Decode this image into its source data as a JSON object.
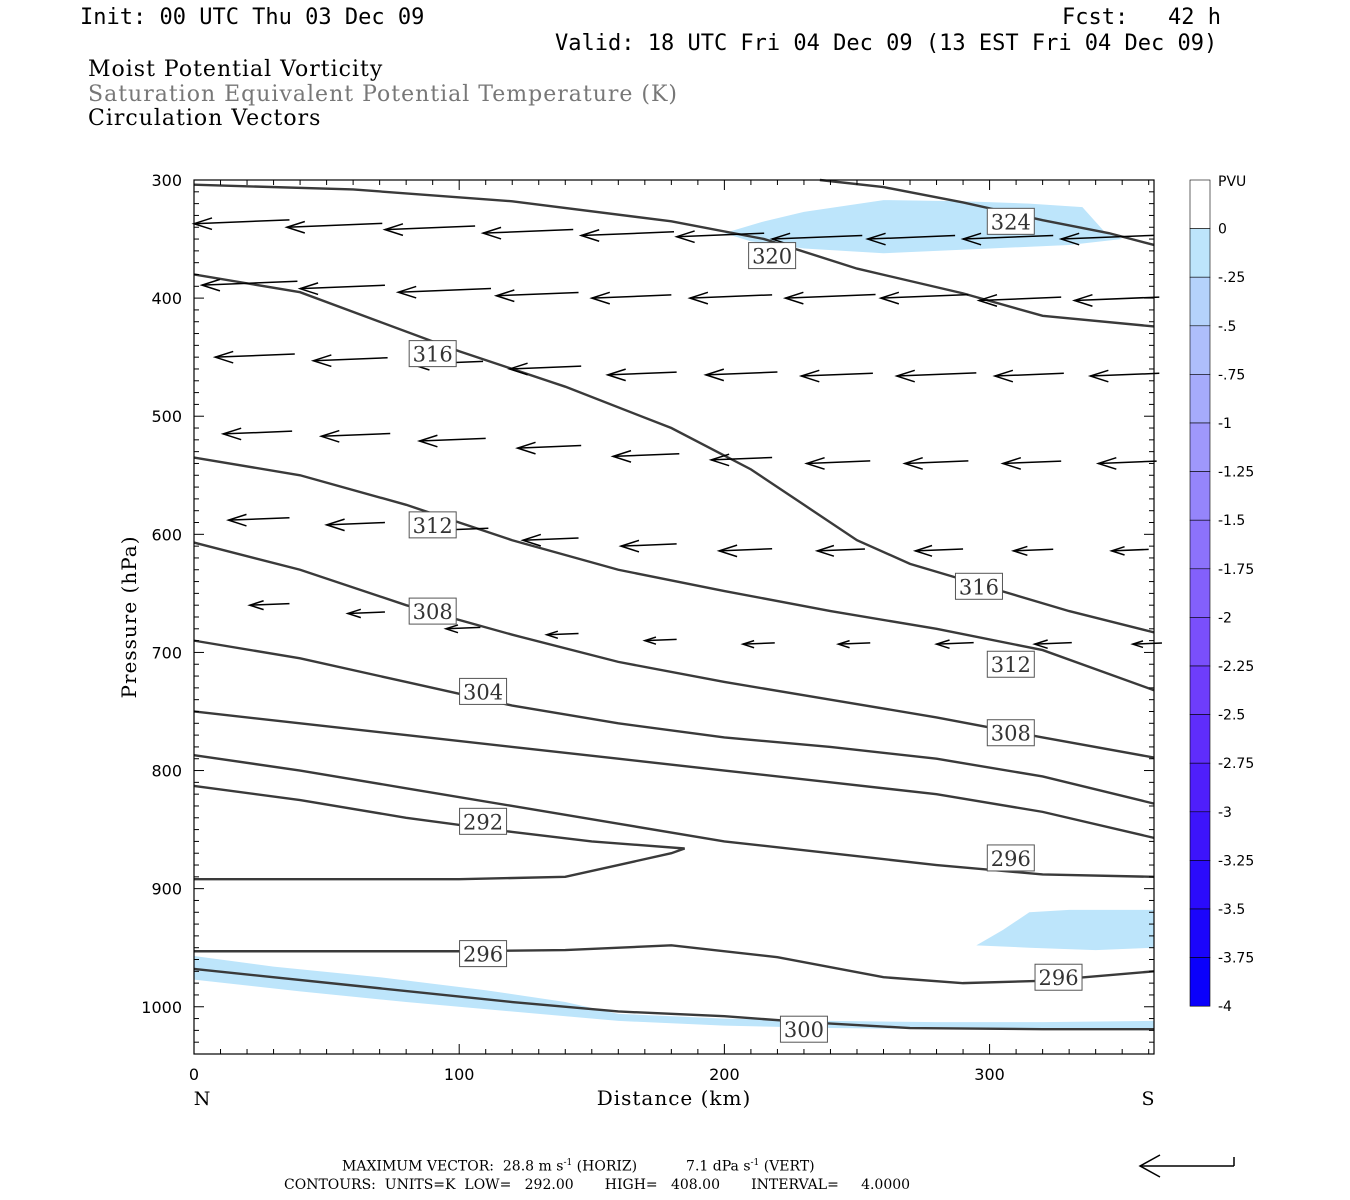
{
  "header": {
    "init": "Init: 00 UTC Thu 03 Dec 09",
    "fcst": "Fcst:   42 h",
    "valid": "Valid: 18 UTC Fri 04 Dec 09 (13 EST Fri 04 Dec 09)"
  },
  "titles": {
    "line1": "Moist Potential Vorticity",
    "line2": "Saturation Equivalent Potential Temperature (K)",
    "line3": "Circulation Vectors"
  },
  "chart_data": {
    "type": "cross-section",
    "xlabel": "Distance (km)",
    "ylabel": "Pressure (hPa)",
    "xlim": [
      0,
      362
    ],
    "ylim": [
      300,
      1040
    ],
    "xticks": [
      0,
      100,
      200,
      300
    ],
    "yticks": [
      300,
      400,
      500,
      600,
      700,
      800,
      900,
      1000
    ],
    "x_end_labels": {
      "left": "N",
      "right": "S"
    },
    "colorbar": {
      "title": "PVU",
      "labels": [
        "0",
        "-.25",
        "-.5",
        "-.75",
        "-1",
        "-1.25",
        "-1.5",
        "-1.75",
        "-2",
        "-2.25",
        "-2.5",
        "-2.75",
        "-3",
        "-3.25",
        "-3.5",
        "-3.75",
        "-4"
      ],
      "colors": [
        "#ffffff",
        "#bde5fb",
        "#b5d2fb",
        "#aebefb",
        "#a6abfb",
        "#9f98fb",
        "#9585fb",
        "#8c72fb",
        "#8360fb",
        "#7a4ffb",
        "#6e3dfb",
        "#5f2dfb",
        "#4f1ffb",
        "#3d14fb",
        "#2b0bfb",
        "#1b05fb",
        "#0a00fb"
      ]
    },
    "mpv_shading": [
      {
        "level": "-.25",
        "color": "#bde5fb",
        "points": [
          [
            200,
            345
          ],
          [
            215,
            335
          ],
          [
            230,
            327
          ],
          [
            260,
            317
          ],
          [
            290,
            318
          ],
          [
            315,
            320
          ],
          [
            335,
            323
          ],
          [
            343,
            343
          ],
          [
            350,
            350
          ],
          [
            330,
            355
          ],
          [
            300,
            358
          ],
          [
            260,
            362
          ],
          [
            230,
            358
          ],
          [
            210,
            352
          ]
        ]
      },
      {
        "level": "-.25",
        "color": "#bde5fb",
        "points": [
          [
            295,
            948
          ],
          [
            305,
            935
          ],
          [
            315,
            920
          ],
          [
            330,
            918
          ],
          [
            362,
            918
          ],
          [
            362,
            950
          ],
          [
            340,
            952
          ],
          [
            315,
            950
          ]
        ]
      },
      {
        "level": "-.25",
        "color": "#bde5fb",
        "points": [
          [
            0,
            957
          ],
          [
            30,
            966
          ],
          [
            70,
            975
          ],
          [
            110,
            986
          ],
          [
            140,
            996
          ],
          [
            160,
            1006
          ],
          [
            200,
            1010
          ],
          [
            240,
            1012
          ],
          [
            280,
            1013
          ],
          [
            320,
            1013
          ],
          [
            362,
            1012
          ],
          [
            362,
            1020
          ],
          [
            320,
            1019
          ],
          [
            280,
            1019
          ],
          [
            240,
            1018
          ],
          [
            200,
            1016
          ],
          [
            160,
            1012
          ],
          [
            120,
            1004
          ],
          [
            80,
            996
          ],
          [
            40,
            987
          ],
          [
            0,
            977
          ]
        ]
      }
    ],
    "contours": [
      {
        "level": 324,
        "label": "324",
        "label_at": [
          308,
          335
        ],
        "points": [
          [
            236,
            300
          ],
          [
            260,
            306
          ],
          [
            290,
            319
          ],
          [
            320,
            334
          ],
          [
            345,
            345
          ],
          [
            362,
            355
          ]
        ]
      },
      {
        "level": 320,
        "label": "320",
        "label_at": [
          218,
          364
        ],
        "points": [
          [
            0,
            304
          ],
          [
            60,
            308
          ],
          [
            120,
            318
          ],
          [
            180,
            335
          ],
          [
            215,
            350
          ],
          [
            250,
            375
          ],
          [
            290,
            396
          ],
          [
            320,
            415
          ],
          [
            362,
            424
          ]
        ]
      },
      {
        "level": 316,
        "label": "316",
        "label_at": [
          90,
          447
        ],
        "points": [
          [
            0,
            380
          ],
          [
            40,
            395
          ],
          [
            70,
            420
          ],
          [
            100,
            445
          ],
          [
            140,
            475
          ],
          [
            180,
            510
          ],
          [
            210,
            545
          ],
          [
            230,
            575
          ],
          [
            250,
            605
          ],
          [
            270,
            625
          ],
          [
            300,
            645
          ],
          [
            330,
            665
          ],
          [
            362,
            683
          ]
        ]
      },
      {
        "level": 316,
        "label": "316",
        "label_at": [
          296,
          644
        ],
        "points": []
      },
      {
        "level": 312,
        "label": "312",
        "label_at": [
          90,
          592
        ],
        "points": [
          [
            0,
            535
          ],
          [
            40,
            550
          ],
          [
            80,
            575
          ],
          [
            120,
            605
          ],
          [
            160,
            630
          ],
          [
            200,
            648
          ],
          [
            240,
            665
          ],
          [
            280,
            680
          ],
          [
            320,
            698
          ],
          [
            362,
            732
          ]
        ]
      },
      {
        "level": 312,
        "label": "312",
        "label_at": [
          308,
          710
        ],
        "points": []
      },
      {
        "level": 308,
        "label": "308",
        "label_at": [
          90,
          665
        ],
        "points": [
          [
            0,
            607
          ],
          [
            40,
            630
          ],
          [
            80,
            660
          ],
          [
            120,
            685
          ],
          [
            160,
            708
          ],
          [
            200,
            725
          ],
          [
            240,
            740
          ],
          [
            280,
            755
          ],
          [
            320,
            772
          ],
          [
            362,
            789
          ]
        ]
      },
      {
        "level": 308,
        "label": "308",
        "label_at": [
          308,
          768
        ],
        "points": []
      },
      {
        "level": 304,
        "label": "304",
        "label_at": [
          109,
          733
        ],
        "points": [
          [
            0,
            690
          ],
          [
            40,
            705
          ],
          [
            80,
            725
          ],
          [
            120,
            745
          ],
          [
            160,
            760
          ],
          [
            200,
            772
          ],
          [
            240,
            780
          ],
          [
            280,
            790
          ],
          [
            320,
            805
          ],
          [
            362,
            828
          ]
        ]
      },
      {
        "level": 300,
        "label": "",
        "label_at": null,
        "points": [
          [
            0,
            750
          ],
          [
            40,
            760
          ],
          [
            80,
            770
          ],
          [
            120,
            780
          ],
          [
            160,
            790
          ],
          [
            200,
            800
          ],
          [
            240,
            810
          ],
          [
            280,
            820
          ],
          [
            320,
            835
          ],
          [
            362,
            857
          ]
        ]
      },
      {
        "level": 296,
        "label": "",
        "label_at": null,
        "points": [
          [
            0,
            787
          ],
          [
            40,
            800
          ],
          [
            80,
            815
          ],
          [
            120,
            830
          ],
          [
            160,
            845
          ],
          [
            200,
            860
          ],
          [
            240,
            870
          ],
          [
            280,
            880
          ],
          [
            320,
            888
          ],
          [
            362,
            890
          ]
        ]
      },
      {
        "level": 292,
        "label": "292",
        "label_at": [
          109,
          843
        ],
        "points": [
          [
            0,
            813
          ],
          [
            40,
            825
          ],
          [
            80,
            840
          ],
          [
            120,
            852
          ],
          [
            150,
            860
          ],
          [
            185,
            866
          ],
          [
            180,
            870
          ],
          [
            160,
            880
          ],
          [
            140,
            890
          ],
          [
            100,
            892
          ],
          [
            0,
            892
          ]
        ]
      },
      {
        "level": 296,
        "label": "296",
        "label_at": [
          308,
          874
        ],
        "points": []
      },
      {
        "level": 296,
        "label": "296",
        "label_at": [
          109,
          955
        ],
        "points": [
          [
            0,
            953
          ],
          [
            40,
            953
          ],
          [
            100,
            953
          ],
          [
            140,
            952
          ],
          [
            180,
            948
          ],
          [
            220,
            958
          ],
          [
            260,
            975
          ],
          [
            290,
            980
          ],
          [
            320,
            978
          ],
          [
            362,
            970
          ]
        ]
      },
      {
        "level": 296,
        "label": "296",
        "label_at": [
          326,
          975
        ],
        "points": []
      },
      {
        "level": 300,
        "label": "300",
        "label_at": [
          230,
          1019
        ],
        "points": [
          [
            0,
            968
          ],
          [
            60,
            982
          ],
          [
            120,
            996
          ],
          [
            160,
            1004
          ],
          [
            200,
            1008
          ],
          [
            230,
            1013
          ],
          [
            270,
            1018
          ],
          [
            320,
            1019
          ],
          [
            362,
            1019
          ]
        ]
      }
    ],
    "vectors": {
      "note": "circulation vectors (horizontal km, vertical hPa)",
      "items": [
        [
          0,
          337,
          36
        ],
        [
          35,
          340,
          36
        ],
        [
          72,
          342,
          34
        ],
        [
          109,
          345,
          34
        ],
        [
          146,
          347,
          35
        ],
        [
          182,
          348,
          33
        ],
        [
          218,
          350,
          34
        ],
        [
          254,
          350,
          33
        ],
        [
          290,
          350,
          34
        ],
        [
          327,
          350,
          35
        ],
        [
          3,
          389,
          36
        ],
        [
          40,
          392,
          32
        ],
        [
          77,
          395,
          35
        ],
        [
          114,
          398,
          31
        ],
        [
          150,
          400,
          30
        ],
        [
          187,
          400,
          31
        ],
        [
          223,
          400,
          34
        ],
        [
          259,
          400,
          33
        ],
        [
          296,
          402,
          31
        ],
        [
          332,
          402,
          32
        ],
        [
          8,
          450,
          30
        ],
        [
          45,
          453,
          28
        ],
        [
          82,
          456,
          27
        ],
        [
          119,
          460,
          27
        ],
        [
          156,
          465,
          26
        ],
        [
          193,
          465,
          27
        ],
        [
          229,
          466,
          27
        ],
        [
          265,
          466,
          30
        ],
        [
          302,
          466,
          26
        ],
        [
          338,
          466,
          26
        ],
        [
          11,
          515,
          26
        ],
        [
          48,
          517,
          26
        ],
        [
          85,
          521,
          25
        ],
        [
          122,
          527,
          24
        ],
        [
          158,
          534,
          25
        ],
        [
          195,
          537,
          23
        ],
        [
          231,
          540,
          24
        ],
        [
          268,
          540,
          24
        ],
        [
          305,
          540,
          22
        ],
        [
          341,
          540,
          22
        ],
        [
          13,
          588,
          23
        ],
        [
          50,
          592,
          22
        ],
        [
          87,
          597,
          24
        ],
        [
          124,
          605,
          21
        ],
        [
          161,
          610,
          21
        ],
        [
          198,
          614,
          20
        ],
        [
          235,
          614,
          18
        ],
        [
          272,
          614,
          18
        ],
        [
          309,
          614,
          15
        ],
        [
          346,
          614,
          14
        ],
        [
          21,
          660,
          15
        ],
        [
          58,
          667,
          14
        ],
        [
          95,
          680,
          13
        ],
        [
          133,
          685,
          12
        ],
        [
          170,
          690,
          12
        ],
        [
          207,
          693,
          12
        ],
        [
          243,
          693,
          12
        ],
        [
          280,
          693,
          14
        ],
        [
          317,
          693,
          14
        ],
        [
          354,
          693,
          11
        ]
      ]
    }
  },
  "footer": {
    "max_vector_label": "MAXIMUM VECTOR:",
    "max_horiz_value": "28.8",
    "max_horiz_unit": "m s",
    "max_horiz_tail": "(HORIZ)",
    "max_vert_value": "7.1",
    "max_vert_unit": "dPa s",
    "max_vert_tail": "(VERT)",
    "exponent": "-1",
    "contours_line": "CONTOURS:  UNITS=K  LOW=   292.00       HIGH=   408.00       INTERVAL=     4.0000"
  }
}
